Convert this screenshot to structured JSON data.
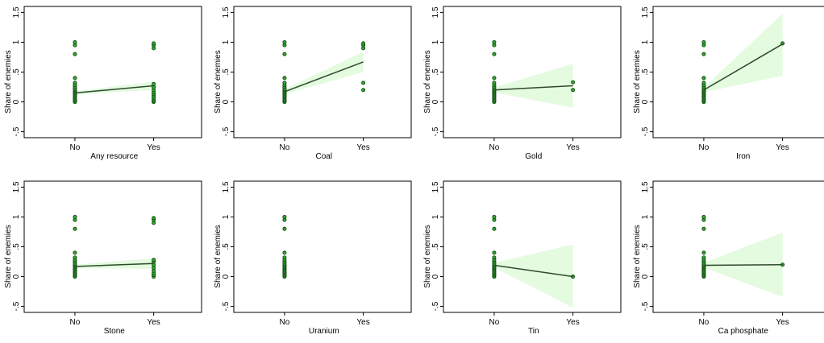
{
  "chart_data": [
    {
      "type": "scatter",
      "xlabel": "Any resource",
      "ylabel": "Share of enemies",
      "categories": [
        "No",
        "Yes"
      ],
      "ylim": [
        -0.6,
        1.6
      ],
      "yticks": [
        -0.5,
        0,
        0.5,
        1,
        1.5
      ],
      "ytick_labels": [
        "-.5",
        "0",
        ".5",
        "1",
        "1.5"
      ],
      "points": {
        "No": [
          0,
          0.02,
          0.04,
          0.06,
          0.08,
          0.1,
          0.12,
          0.14,
          0.16,
          0.18,
          0.2,
          0.22,
          0.25,
          0.28,
          0.32,
          0.4,
          0.8,
          0.95,
          1.0
        ],
        "Yes": [
          0,
          0.02,
          0.04,
          0.07,
          0.1,
          0.13,
          0.16,
          0.2,
          0.25,
          0.3,
          0.9,
          0.95,
          0.98
        ]
      },
      "fit_line": [
        0.15,
        0.27
      ],
      "ci_lower": [
        0.12,
        0.2
      ],
      "ci_upper": [
        0.18,
        0.34
      ]
    },
    {
      "type": "scatter",
      "xlabel": "Coal",
      "ylabel": "Share of enemies",
      "categories": [
        "No",
        "Yes"
      ],
      "ylim": [
        -0.6,
        1.6
      ],
      "yticks": [
        -0.5,
        0,
        0.5,
        1,
        1.5
      ],
      "ytick_labels": [
        "-.5",
        "0",
        ".5",
        "1",
        "1.5"
      ],
      "points": {
        "No": [
          0,
          0.02,
          0.04,
          0.06,
          0.08,
          0.1,
          0.12,
          0.14,
          0.16,
          0.18,
          0.2,
          0.22,
          0.25,
          0.28,
          0.32,
          0.4,
          0.8,
          0.95,
          1.0
        ],
        "Yes": [
          0.2,
          0.32,
          0.9,
          0.95,
          0.98
        ]
      },
      "fit_line": [
        0.17,
        0.67
      ],
      "ci_lower": [
        0.13,
        0.5
      ],
      "ci_upper": [
        0.21,
        0.84
      ]
    },
    {
      "type": "scatter",
      "xlabel": "Gold",
      "ylabel": "Share of enemies",
      "categories": [
        "No",
        "Yes"
      ],
      "ylim": [
        -0.6,
        1.6
      ],
      "yticks": [
        -0.5,
        0,
        0.5,
        1,
        1.5
      ],
      "ytick_labels": [
        "-.5",
        "0",
        ".5",
        "1",
        "1.5"
      ],
      "points": {
        "No": [
          0,
          0.02,
          0.04,
          0.06,
          0.08,
          0.1,
          0.12,
          0.14,
          0.16,
          0.18,
          0.2,
          0.22,
          0.25,
          0.28,
          0.32,
          0.4,
          0.8,
          0.95,
          1.0
        ],
        "Yes": [
          0.2,
          0.33
        ]
      },
      "fit_line": [
        0.2,
        0.27
      ],
      "ci_lower": [
        0.16,
        -0.1
      ],
      "ci_upper": [
        0.24,
        0.64
      ]
    },
    {
      "type": "scatter",
      "xlabel": "Iron",
      "ylabel": "Share of enemies",
      "categories": [
        "No",
        "Yes"
      ],
      "ylim": [
        -0.6,
        1.6
      ],
      "yticks": [
        -0.5,
        0,
        0.5,
        1,
        1.5
      ],
      "ytick_labels": [
        "-.5",
        "0",
        ".5",
        "1",
        "1.5"
      ],
      "points": {
        "No": [
          0,
          0.02,
          0.04,
          0.06,
          0.08,
          0.1,
          0.12,
          0.14,
          0.16,
          0.18,
          0.2,
          0.22,
          0.25,
          0.28,
          0.32,
          0.4,
          0.8,
          0.95,
          1.0
        ],
        "Yes": [
          0.98
        ]
      },
      "fit_line": [
        0.2,
        0.97
      ],
      "ci_lower": [
        0.16,
        0.44
      ],
      "ci_upper": [
        0.24,
        1.48
      ]
    },
    {
      "type": "scatter",
      "xlabel": "Stone",
      "ylabel": "Share of enemies",
      "categories": [
        "No",
        "Yes"
      ],
      "ylim": [
        -0.6,
        1.6
      ],
      "yticks": [
        -0.5,
        0,
        0.5,
        1,
        1.5
      ],
      "ytick_labels": [
        "-.5",
        "0",
        ".5",
        "1",
        "1.5"
      ],
      "points": {
        "No": [
          0,
          0.02,
          0.04,
          0.06,
          0.08,
          0.1,
          0.12,
          0.14,
          0.16,
          0.18,
          0.2,
          0.22,
          0.25,
          0.28,
          0.32,
          0.4,
          0.8,
          0.95,
          1.0
        ],
        "Yes": [
          0,
          0.03,
          0.06,
          0.1,
          0.15,
          0.2,
          0.25,
          0.28,
          0.9,
          0.95,
          0.98
        ]
      },
      "fit_line": [
        0.17,
        0.22
      ],
      "ci_lower": [
        0.14,
        0.13
      ],
      "ci_upper": [
        0.2,
        0.31
      ]
    },
    {
      "type": "scatter",
      "xlabel": "Uranium",
      "ylabel": "Share of enemies",
      "categories": [
        "No",
        "Yes"
      ],
      "ylim": [
        -0.6,
        1.6
      ],
      "yticks": [
        -0.5,
        0,
        0.5,
        1,
        1.5
      ],
      "ytick_labels": [
        "-.5",
        "0",
        ".5",
        "1",
        "1.5"
      ],
      "points": {
        "No": [
          0,
          0.02,
          0.04,
          0.06,
          0.08,
          0.1,
          0.12,
          0.14,
          0.16,
          0.18,
          0.2,
          0.22,
          0.25,
          0.28,
          0.32,
          0.4,
          0.8,
          0.95,
          1.0
        ],
        "Yes": []
      },
      "fit_line": null,
      "ci_lower": null,
      "ci_upper": null
    },
    {
      "type": "scatter",
      "xlabel": "Tin",
      "ylabel": "Share of enemies",
      "categories": [
        "No",
        "Yes"
      ],
      "ylim": [
        -0.6,
        1.6
      ],
      "yticks": [
        -0.5,
        0,
        0.5,
        1,
        1.5
      ],
      "ytick_labels": [
        "-.5",
        "0",
        ".5",
        "1",
        "1.5"
      ],
      "points": {
        "No": [
          0,
          0.02,
          0.04,
          0.06,
          0.08,
          0.1,
          0.12,
          0.14,
          0.16,
          0.18,
          0.2,
          0.22,
          0.25,
          0.28,
          0.32,
          0.4,
          0.8,
          0.95,
          1.0
        ],
        "Yes": [
          0
        ]
      },
      "fit_line": [
        0.19,
        0
      ],
      "ci_lower": [
        0.15,
        -0.52
      ],
      "ci_upper": [
        0.23,
        0.54
      ]
    },
    {
      "type": "scatter",
      "xlabel": "Ca phosphate",
      "ylabel": "Share of enemies",
      "categories": [
        "No",
        "Yes"
      ],
      "ylim": [
        -0.6,
        1.6
      ],
      "yticks": [
        -0.5,
        0,
        0.5,
        1,
        1.5
      ],
      "ytick_labels": [
        "-.5",
        "0",
        ".5",
        "1",
        "1.5"
      ],
      "points": {
        "No": [
          0,
          0.02,
          0.04,
          0.06,
          0.08,
          0.1,
          0.12,
          0.14,
          0.16,
          0.18,
          0.2,
          0.22,
          0.25,
          0.28,
          0.32,
          0.4,
          0.8,
          0.95,
          1.0
        ],
        "Yes": [
          0.2
        ]
      },
      "fit_line": [
        0.19,
        0.2
      ],
      "ci_lower": [
        0.15,
        -0.34
      ],
      "ci_upper": [
        0.23,
        0.74
      ]
    }
  ],
  "colors": {
    "point_fill": "#2fa82f",
    "point_stroke": "#0b3d0b",
    "fit_line": "#2d4a2d",
    "ci_band": "#e4fbe0",
    "frame": "#000000"
  }
}
